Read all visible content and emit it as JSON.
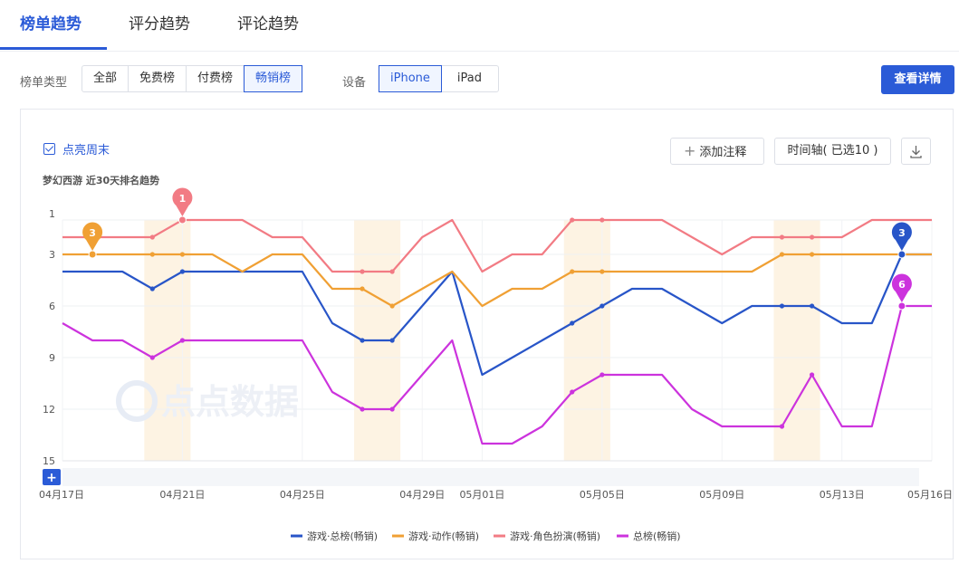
{
  "tabs": [
    {
      "label": "榜单趋势",
      "active": true
    },
    {
      "label": "评分趋势",
      "active": false
    },
    {
      "label": "评论趋势",
      "active": false
    }
  ],
  "filters": {
    "list_type_label": "榜单类型",
    "list_types": [
      "全部",
      "免费榜",
      "付费榜",
      "畅销榜"
    ],
    "list_type_selected": "畅销榜",
    "device_label": "设备",
    "devices": [
      "iPhone",
      "iPad"
    ],
    "device_selected": "iPhone",
    "detail_button": "查看详情"
  },
  "chart_panel": {
    "weekend_toggle": "点亮周末",
    "add_note": "添加注释",
    "timeline": "时间轴( 已选10 )",
    "download_icon": "download-icon",
    "subtitle": "梦幻西游 近30天排名趋势"
  },
  "watermark": "点点数据",
  "chart_data": {
    "type": "line",
    "y_reversed": true,
    "ylim": [
      1,
      15
    ],
    "y_ticks": [
      1,
      3,
      6,
      9,
      12,
      15
    ],
    "x": [
      "04月17日",
      "04月18日",
      "04月19日",
      "04月20日",
      "04月21日",
      "04月22日",
      "04月23日",
      "04月24日",
      "04月25日",
      "04月26日",
      "04月27日",
      "04月28日",
      "04月29日",
      "04月30日",
      "05月01日",
      "05月02日",
      "05月03日",
      "05月04日",
      "05月05日",
      "05月06日",
      "05月07日",
      "05月08日",
      "05月09日",
      "05月10日",
      "05月11日",
      "05月12日",
      "05月13日",
      "05月14日",
      "05月15日",
      "05月16日"
    ],
    "x_tick_labels": [
      "04月17日",
      "04月21日",
      "04月25日",
      "04月29日",
      "05月01日",
      "05月05日",
      "05月09日",
      "05月13日",
      "05月16日"
    ],
    "weekends": [
      [
        "04月20日",
        "04月21日"
      ],
      [
        "04月27日",
        "04月28日"
      ],
      [
        "05月04日",
        "05月05日"
      ],
      [
        "05月11日",
        "05月12日"
      ]
    ],
    "series": [
      {
        "name": "游戏·总榜(畅销)",
        "color": "#2855c8",
        "values": [
          4,
          4,
          4,
          5,
          4,
          4,
          4,
          4,
          4,
          7,
          8,
          8,
          6,
          4,
          10,
          9,
          8,
          7,
          6,
          5,
          5,
          6,
          7,
          6,
          6,
          6,
          7,
          7,
          3,
          3
        ]
      },
      {
        "name": "游戏·动作(畅销)",
        "color": "#f0a034",
        "values": [
          3,
          3,
          3,
          3,
          3,
          3,
          4,
          3,
          3,
          5,
          5,
          6,
          5,
          4,
          6,
          5,
          5,
          4,
          4,
          4,
          4,
          4,
          4,
          4,
          3,
          3,
          3,
          3,
          3,
          3
        ]
      },
      {
        "name": "游戏·角色扮演(畅销)",
        "color": "#f27b84",
        "values": [
          2,
          2,
          2,
          2,
          1,
          1,
          1,
          2,
          2,
          4,
          4,
          4,
          2,
          1,
          4,
          3,
          3,
          1,
          1,
          1,
          1,
          2,
          3,
          2,
          2,
          2,
          2,
          1,
          1,
          1
        ]
      },
      {
        "name": "总榜(畅销)",
        "color": "#cc33dd",
        "values": [
          7,
          8,
          8,
          9,
          8,
          8,
          8,
          8,
          8,
          11,
          12,
          12,
          10,
          8,
          14,
          14,
          13,
          11,
          10,
          10,
          10,
          12,
          13,
          13,
          13,
          10,
          13,
          13,
          6,
          6
        ]
      }
    ],
    "markers": [
      {
        "series": 1,
        "x": "04月18日",
        "label": "3"
      },
      {
        "series": 2,
        "x": "04月21日",
        "label": "1"
      },
      {
        "series": 0,
        "x": "05月15日",
        "label": "3"
      },
      {
        "series": 3,
        "x": "05月15日",
        "label": "6"
      }
    ]
  }
}
